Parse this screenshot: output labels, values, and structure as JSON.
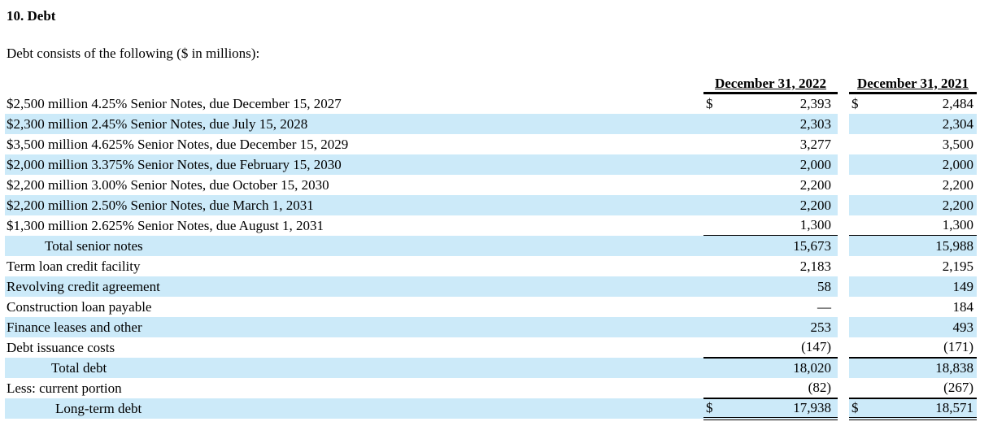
{
  "title": "10. Debt",
  "intro": "Debt consists of the following ($ in millions):",
  "colors": {
    "row_highlight": "#cceaf9",
    "rule": "#000000",
    "text": "#000000"
  },
  "table": {
    "col_headers": [
      "December 31, 2022",
      "December 31, 2021"
    ],
    "rows": [
      {
        "label": "$2,500 million 4.25% Senior Notes, due December 15, 2027",
        "cur1": "$",
        "v1": "2,393",
        "cur2": "$",
        "v2": "2,484"
      },
      {
        "label": "$2,300 million 2.45% Senior Notes, due July 15, 2028",
        "v1": "2,303",
        "v2": "2,304"
      },
      {
        "label": "$3,500 million 4.625% Senior Notes, due December 15, 2029",
        "v1": "3,277",
        "v2": "3,500"
      },
      {
        "label": "$2,000 million 3.375% Senior Notes, due February 15, 2030",
        "v1": "2,000",
        "v2": "2,000"
      },
      {
        "label": "$2,200 million 3.00% Senior Notes, due October 15, 2030",
        "v1": "2,200",
        "v2": "2,200"
      },
      {
        "label": "$2,200 million 2.50% Senior Notes, due March 1, 2031",
        "v1": "2,200",
        "v2": "2,200"
      },
      {
        "label": "$1,300 million 2.625% Senior Notes, due August 1, 2031",
        "v1": "1,300",
        "v2": "1,300"
      },
      {
        "label": "Total senior notes",
        "v1": "15,673",
        "v2": "15,988"
      },
      {
        "label": "Term loan credit facility",
        "v1": "2,183",
        "v2": "2,195"
      },
      {
        "label": "Revolving credit agreement",
        "v1": "58",
        "v2": "149"
      },
      {
        "label": "Construction loan payable",
        "v1": "—",
        "v2": "184"
      },
      {
        "label": "Finance leases and other",
        "v1": "253",
        "v2": "493"
      },
      {
        "label": "Debt issuance costs",
        "v1": "(147)",
        "v2": "(171)"
      },
      {
        "label": "Total debt",
        "v1": "18,020",
        "v2": "18,838"
      },
      {
        "label": "Less: current portion",
        "v1": "(82)",
        "v2": "(267)"
      },
      {
        "label": "Long-term debt",
        "cur1": "$",
        "v1": "17,938",
        "cur2": "$",
        "v2": "18,571"
      }
    ]
  }
}
